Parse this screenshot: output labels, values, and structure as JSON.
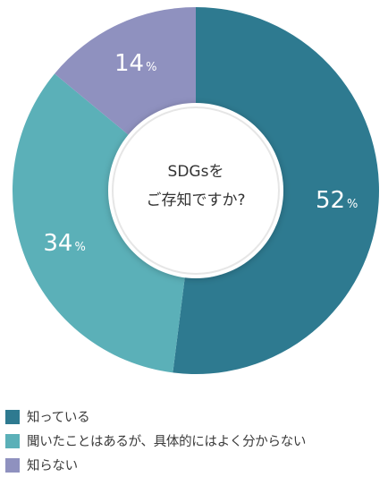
{
  "chart_data": {
    "type": "pie",
    "center_label_lines": [
      "SDGsを",
      "ご存知ですか?"
    ],
    "categories": [
      "知っている",
      "聞いたことはあるが、具体的にはよく分からない",
      "知らない"
    ],
    "values": [
      52,
      34,
      14
    ],
    "unit": "%",
    "colors": [
      "#2e7a90",
      "#5bb0b8",
      "#8f91bf"
    ],
    "legend_position": "bottom-left"
  }
}
